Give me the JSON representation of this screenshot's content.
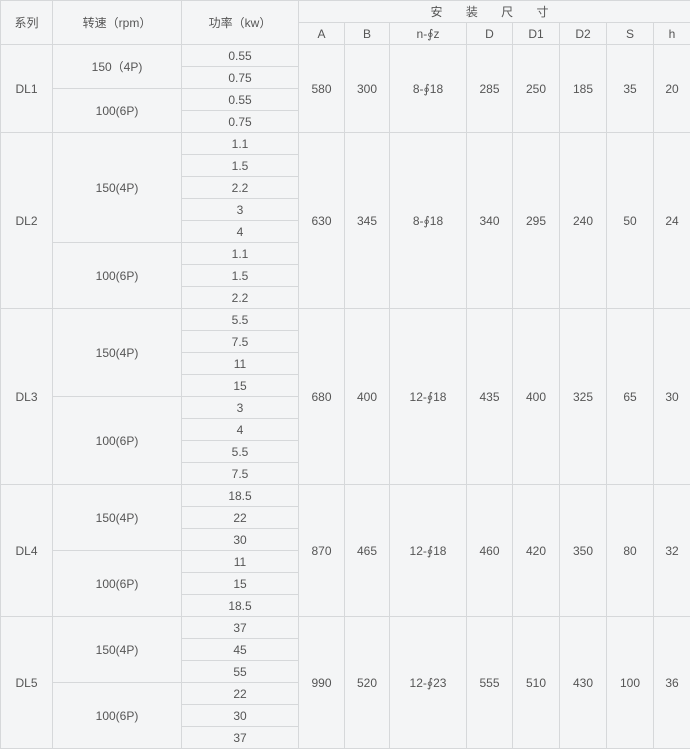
{
  "header": {
    "series": "系列",
    "speed": "转速（rpm）",
    "power": "功率（kw）",
    "install": "安 装 尺 寸",
    "dims": [
      "A",
      "B",
      "n-∮z",
      "D",
      "D1",
      "D2",
      "S",
      "h"
    ]
  },
  "groups": [
    {
      "series": "DL1",
      "dims": [
        "580",
        "300",
        "8-∮18",
        "285",
        "250",
        "185",
        "35",
        "20"
      ],
      "speeds": [
        {
          "label": "150（4P)",
          "powers": [
            "0.55",
            "0.75"
          ]
        },
        {
          "label": "100(6P)",
          "powers": [
            "0.55",
            "0.75"
          ]
        }
      ]
    },
    {
      "series": "DL2",
      "dims": [
        "630",
        "345",
        "8-∮18",
        "340",
        "295",
        "240",
        "50",
        "24"
      ],
      "speeds": [
        {
          "label": "150(4P)",
          "powers": [
            "1.1",
            "1.5",
            "2.2",
            "3",
            "4"
          ]
        },
        {
          "label": "100(6P)",
          "powers": [
            "1.1",
            "1.5",
            "2.2"
          ]
        }
      ]
    },
    {
      "series": "DL3",
      "dims": [
        "680",
        "400",
        "12-∮18",
        "435",
        "400",
        "325",
        "65",
        "30"
      ],
      "speeds": [
        {
          "label": "150(4P)",
          "powers": [
            "5.5",
            "7.5",
            "11",
            "15"
          ]
        },
        {
          "label": "100(6P)",
          "powers": [
            "3",
            "4",
            "5.5",
            "7.5"
          ]
        }
      ]
    },
    {
      "series": "DL4",
      "dims": [
        "870",
        "465",
        "12-∮18",
        "460",
        "420",
        "350",
        "80",
        "32"
      ],
      "speeds": [
        {
          "label": "150(4P)",
          "powers": [
            "18.5",
            "22",
            "30"
          ]
        },
        {
          "label": "100(6P)",
          "powers": [
            "11",
            "15",
            "18.5"
          ]
        }
      ]
    },
    {
      "series": "DL5",
      "dims": [
        "990",
        "520",
        "12-∮23",
        "555",
        "510",
        "430",
        "100",
        "36"
      ],
      "speeds": [
        {
          "label": "150(4P)",
          "powers": [
            "37",
            "45",
            "55"
          ]
        },
        {
          "label": "100(6P)",
          "powers": [
            "22",
            "30",
            "37"
          ]
        }
      ]
    }
  ]
}
